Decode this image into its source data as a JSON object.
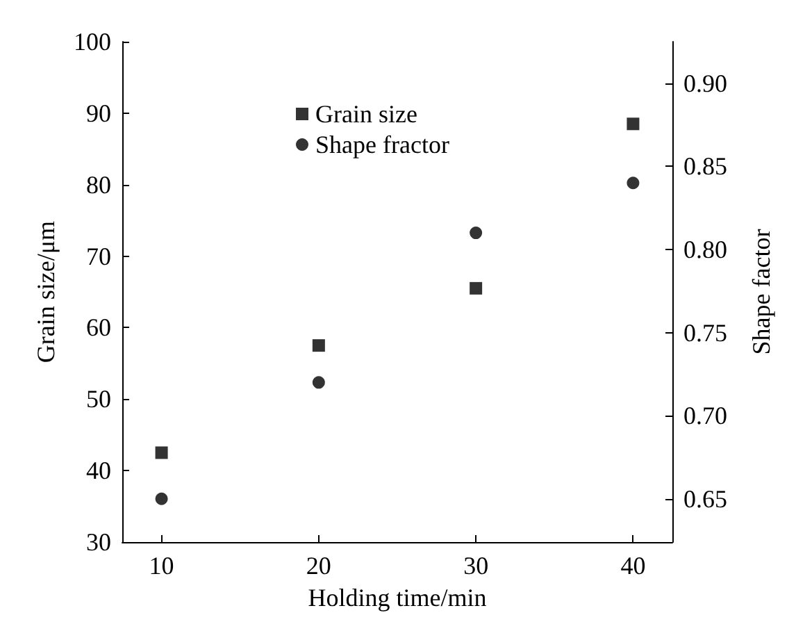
{
  "chart_data": {
    "type": "scatter",
    "xlabel": "Holding time/min",
    "ylabel": "Grain size/μm",
    "y2label": "Shape factor",
    "x": [
      10,
      20,
      30,
      40
    ],
    "series": [
      {
        "name": "Grain size",
        "color": "#000000",
        "marker": "square",
        "values": [
          42.5,
          57.5,
          65.5,
          88.5
        ]
      },
      {
        "name": "Shape fractor",
        "color": "#000000",
        "marker": "circle",
        "axis": "y2",
        "values": [
          0.65,
          0.72,
          0.81,
          0.84
        ]
      }
    ],
    "xlim": [
      7.5,
      42.5
    ],
    "xticks": [
      10,
      20,
      30,
      40
    ],
    "ylim": [
      30,
      100
    ],
    "yticks": [
      30,
      40,
      50,
      60,
      70,
      80,
      90,
      100
    ],
    "y2lim": [
      0.624,
      0.925
    ],
    "y2ticks": [
      0.65,
      {
        "value": 0.7,
        "label": "0.70"
      },
      0.75,
      {
        "value": 0.8,
        "label": "0.80"
      },
      0.85,
      {
        "value": 0.9,
        "label": "0.90"
      }
    ],
    "grid": false,
    "legend": "top"
  }
}
